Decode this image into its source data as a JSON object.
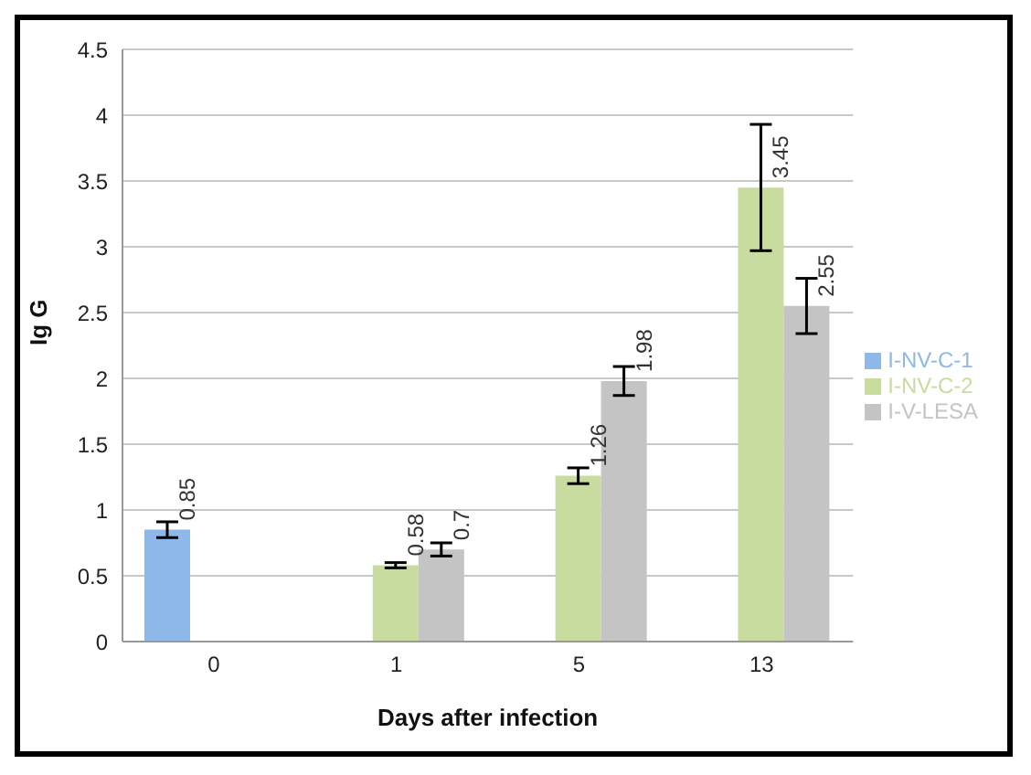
{
  "chart_data": {
    "type": "bar",
    "xlabel": "Days after infection",
    "ylabel": "Ig G",
    "categories": [
      "0",
      "1",
      "5",
      "13"
    ],
    "series": [
      {
        "name": "I-NV-C-1",
        "color": "#8db8e8",
        "values": [
          0.85,
          null,
          null,
          null
        ],
        "errors": [
          0.06,
          null,
          null,
          null
        ]
      },
      {
        "name": "I-NV-C-2",
        "color": "#c8dca0",
        "values": [
          null,
          0.58,
          1.26,
          3.45
        ],
        "errors": [
          null,
          0.02,
          0.06,
          0.48
        ]
      },
      {
        "name": "I-V-LESA",
        "color": "#c4c4c4",
        "values": [
          null,
          0.7,
          1.98,
          2.55
        ],
        "errors": [
          null,
          0.05,
          0.11,
          0.21
        ]
      }
    ],
    "ylim": [
      0,
      4.5
    ],
    "yticks": [
      0,
      0.5,
      1,
      1.5,
      2,
      2.5,
      3,
      3.5,
      4,
      4.5
    ],
    "grid": "y",
    "legend": "right",
    "data_labels": true
  }
}
